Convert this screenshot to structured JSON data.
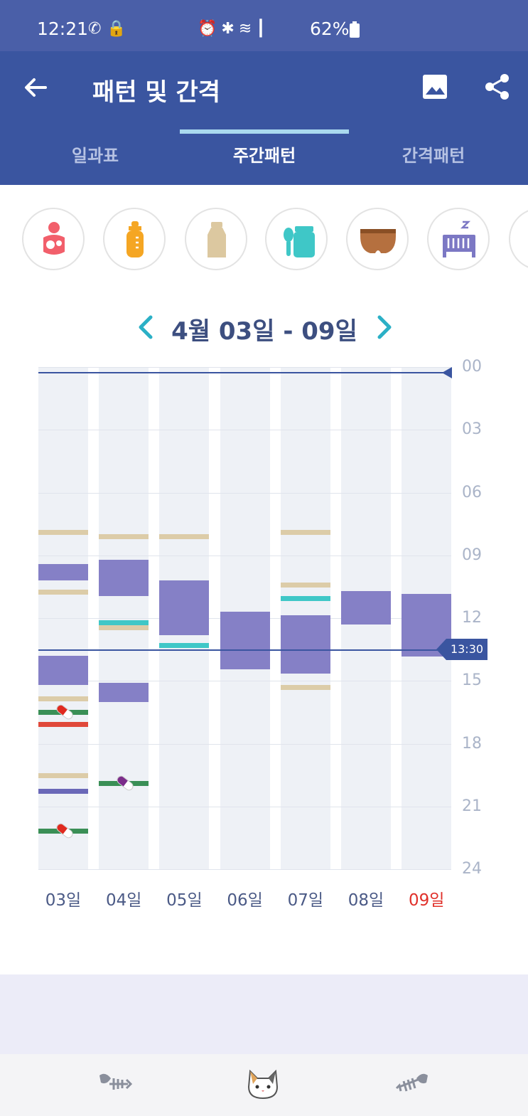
{
  "status_bar": {
    "time": "12:21",
    "battery": "62%",
    "icons": [
      "wifi-calling-icon",
      "lock-icon",
      "alarm-icon",
      "bluetooth-icon",
      "wifi-icon",
      "hd-voice-icon",
      "signal-icon",
      "battery-icon"
    ]
  },
  "app_bar": {
    "title": "패턴 및 간격",
    "tabs": [
      {
        "label": "일과표",
        "active": false
      },
      {
        "label": "주간패턴",
        "active": true
      },
      {
        "label": "간격패턴",
        "active": false
      }
    ]
  },
  "categories": [
    {
      "name": "breastfeeding",
      "icon": "breastfeeding-icon",
      "color": "#f25f6b"
    },
    {
      "name": "formula",
      "icon": "baby-bottle-icon",
      "color": "#f5a623"
    },
    {
      "name": "pumped-milk",
      "icon": "milk-bottle-icon",
      "color": "#dcc8a0"
    },
    {
      "name": "baby-food",
      "icon": "baby-food-icon",
      "color": "#3fc7c7"
    },
    {
      "name": "diaper",
      "icon": "diaper-icon",
      "color": "#b5703f"
    },
    {
      "name": "sleep",
      "icon": "crib-sleep-icon",
      "color": "#7c78c4"
    }
  ],
  "week": {
    "label": "4월 03일 - 09일"
  },
  "chart_data": {
    "type": "timeline",
    "hour_ticks": [
      "00",
      "03",
      "06",
      "09",
      "12",
      "15",
      "18",
      "21",
      "24"
    ],
    "days": [
      {
        "label": "03일",
        "today": false
      },
      {
        "label": "04일",
        "today": false
      },
      {
        "label": "05일",
        "today": false
      },
      {
        "label": "06일",
        "today": false
      },
      {
        "label": "07일",
        "today": false
      },
      {
        "label": "08일",
        "today": false
      },
      {
        "label": "09일",
        "today": true
      }
    ],
    "now_label": "13:30",
    "now_hour": 13.5,
    "colors": {
      "sleep": "#8580c6",
      "pumped": "#dccca8",
      "food": "#3fc7c7",
      "medicine": "#3a8f56",
      "temperature": "#e0483a",
      "sleep_line": "#6a68b8",
      "now": "#3a55a0",
      "today": "#e0302a"
    },
    "events": [
      {
        "day": 0,
        "type": "pumped",
        "start": 7.9
      },
      {
        "day": 0,
        "type": "sleep",
        "start": 9.4,
        "end": 10.2
      },
      {
        "day": 0,
        "type": "pumped",
        "start": 10.75
      },
      {
        "day": 0,
        "type": "sleep",
        "start": 13.8,
        "end": 15.2
      },
      {
        "day": 0,
        "type": "pumped",
        "start": 15.85
      },
      {
        "day": 0,
        "type": "medicine",
        "start": 16.5,
        "pill": "red"
      },
      {
        "day": 0,
        "type": "temperature",
        "start": 17.05
      },
      {
        "day": 0,
        "type": "pumped",
        "start": 19.5
      },
      {
        "day": 0,
        "type": "sleep_line",
        "start": 20.25
      },
      {
        "day": 0,
        "type": "medicine",
        "start": 22.15,
        "pill": "red"
      },
      {
        "day": 1,
        "type": "pumped",
        "start": 8.1
      },
      {
        "day": 1,
        "type": "sleep",
        "start": 9.2,
        "end": 10.95
      },
      {
        "day": 1,
        "type": "food",
        "start": 12.2
      },
      {
        "day": 1,
        "type": "pumped",
        "start": 12.45
      },
      {
        "day": 1,
        "type": "sleep",
        "start": 15.1,
        "end": 16.0
      },
      {
        "day": 1,
        "type": "medicine",
        "start": 19.9,
        "pill": "purple"
      },
      {
        "day": 2,
        "type": "pumped",
        "start": 8.1
      },
      {
        "day": 2,
        "type": "sleep",
        "start": 10.2,
        "end": 12.8
      },
      {
        "day": 2,
        "type": "food",
        "start": 13.3
      },
      {
        "day": 3,
        "type": "sleep",
        "start": 11.7,
        "end": 14.45
      },
      {
        "day": 4,
        "type": "pumped",
        "start": 7.9
      },
      {
        "day": 4,
        "type": "pumped",
        "start": 10.4
      },
      {
        "day": 4,
        "type": "food",
        "start": 11.05
      },
      {
        "day": 4,
        "type": "sleep",
        "start": 11.85,
        "end": 14.65
      },
      {
        "day": 4,
        "type": "pumped",
        "start": 15.3
      },
      {
        "day": 5,
        "type": "sleep",
        "start": 10.7,
        "end": 12.3
      },
      {
        "day": 6,
        "type": "sleep",
        "start": 10.85,
        "end": 13.85
      }
    ]
  },
  "bottom_nav": {
    "items": [
      {
        "name": "fish-bone-icon"
      },
      {
        "name": "cat-face-icon"
      },
      {
        "name": "fish-bone-icon"
      }
    ]
  }
}
